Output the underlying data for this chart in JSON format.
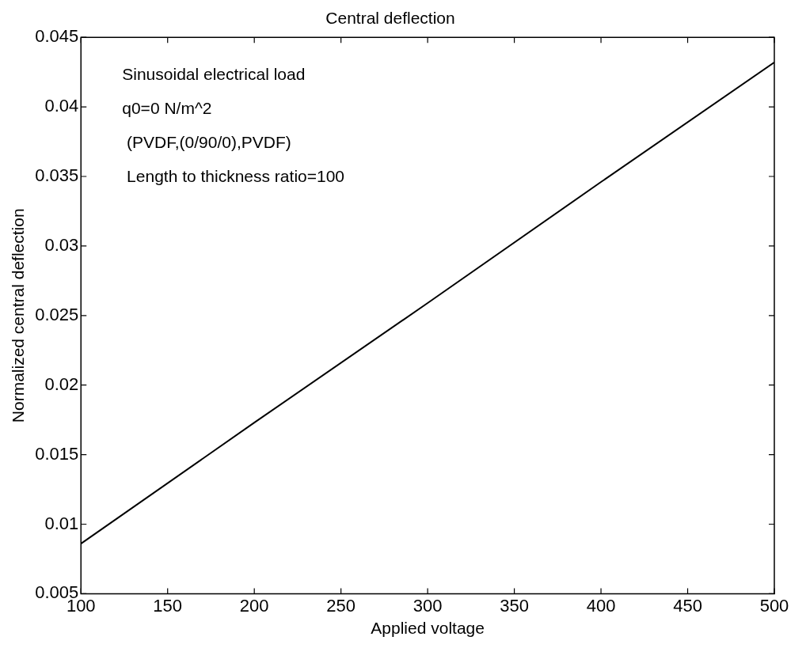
{
  "chart_data": {
    "type": "line",
    "title": "Central deflection",
    "xlabel": "Applied voltage",
    "ylabel": "Normalized central deflection",
    "x": [
      100,
      200,
      300,
      400,
      500
    ],
    "series": [
      {
        "color": "#000000",
        "values": [
          0.0086,
          0.0173,
          0.0259,
          0.0346,
          0.0432
        ]
      }
    ],
    "xlim": [
      100,
      500
    ],
    "xticks": [
      100,
      150,
      200,
      250,
      300,
      350,
      400,
      450,
      500
    ],
    "ylim": [
      0.005,
      0.045
    ],
    "yticks": [
      0.005,
      0.01,
      0.015,
      0.02,
      0.025,
      0.03,
      0.035,
      0.04,
      0.045
    ],
    "annotations": [
      "Sinusoidal electrical load",
      "q0=0 N/m^2",
      " (PVDF,(0/90/0),PVDF)",
      " Length to thickness ratio=100"
    ],
    "grid": false,
    "legend": false,
    "marker": "none",
    "line_style": "solid"
  }
}
